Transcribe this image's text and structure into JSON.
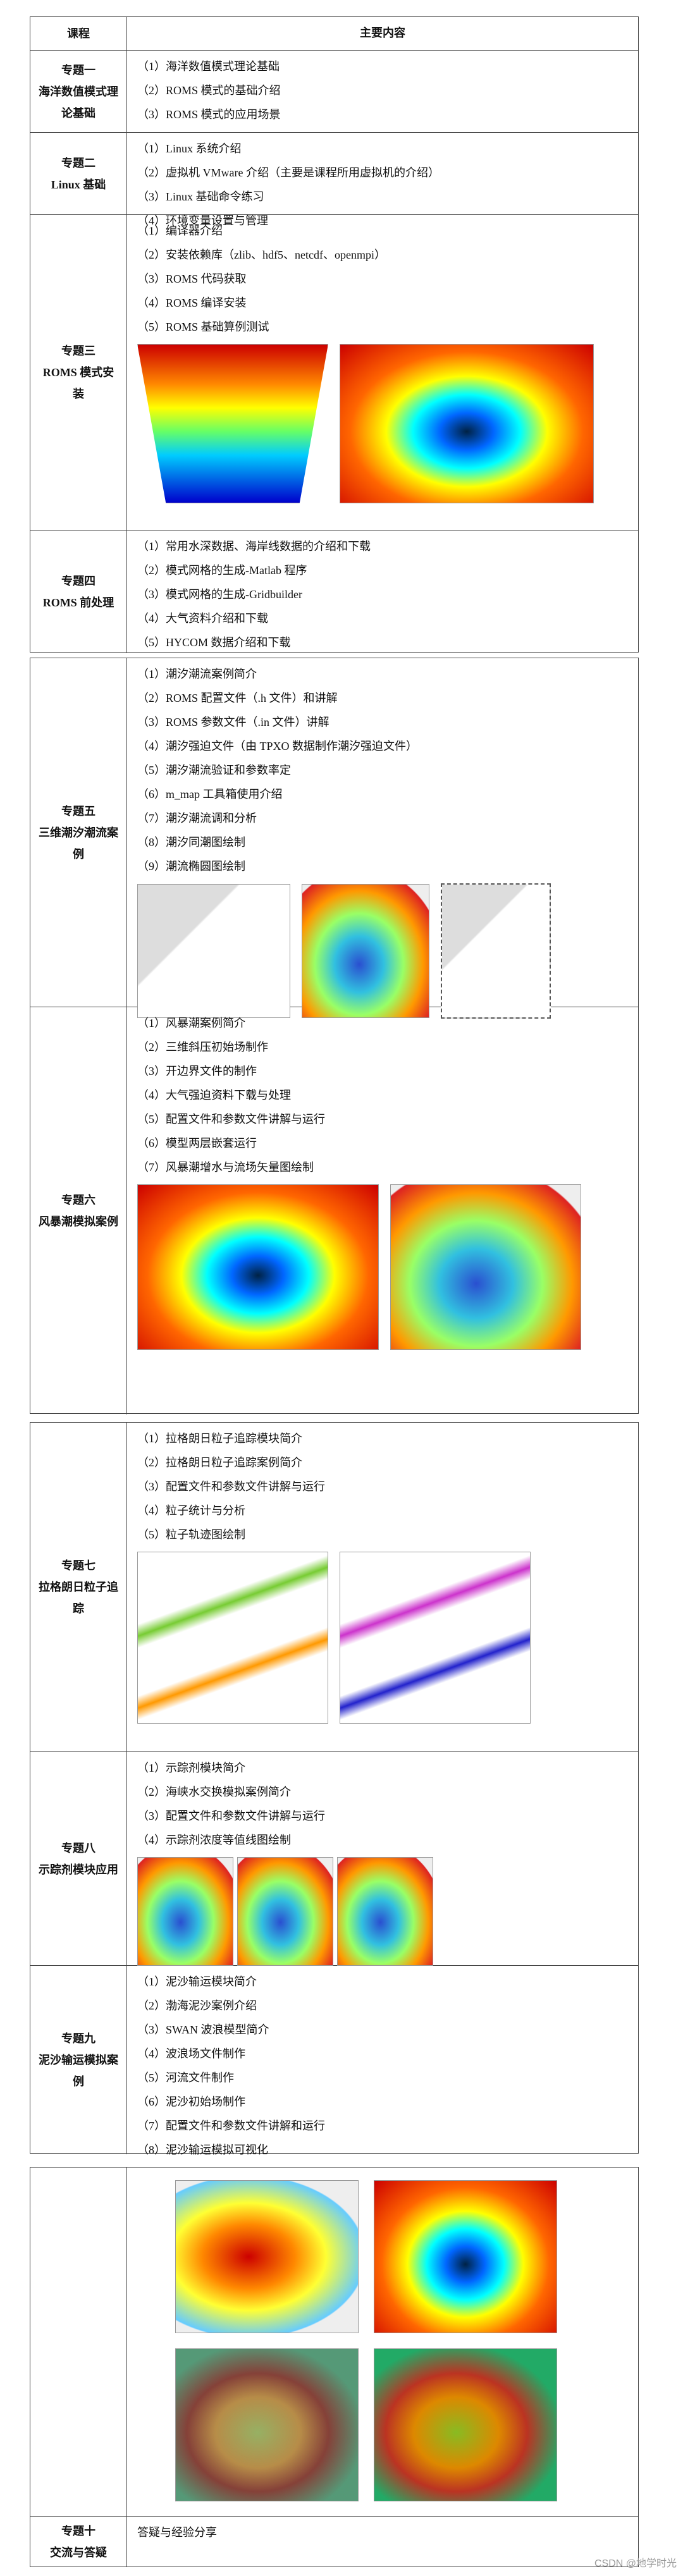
{
  "header": {
    "course": "课程",
    "content": "主要内容"
  },
  "rows": [
    {
      "number": "专题一",
      "name": "海洋数值模式理论基础",
      "items": [
        "（1）海洋数值模式理论基础",
        "（2）ROMS 模式的基础介绍",
        "（3）ROMS 模式的应用场景"
      ]
    },
    {
      "number": "专题二",
      "name": "Linux 基础",
      "items": [
        "（1）Linux 系统介绍",
        "（2）虚拟机 VMware 介绍（主要是课程所用虚拟机的介绍）",
        "（3）Linux 基础命令练习",
        "（4）环境变量设置与管理"
      ]
    },
    {
      "number": "专题三",
      "name": "ROMS 模式安装",
      "items": [
        "（1）编译器介绍",
        "（2）安装依赖库（zlib、hdf5、netcdf、openmpi）",
        "（3）ROMS 代码获取",
        "（4）ROMS 编译安装",
        "（5）ROMS 基础算例测试"
      ]
    },
    {
      "number": "专题四",
      "name": "ROMS 前处理",
      "items": [
        "（1）常用水深数据、海岸线数据的介绍和下载",
        "（2）模式网格的生成-Matlab 程序",
        "（3）模式网格的生成-Gridbuilder",
        "（4）大气资料介绍和下载",
        "（5）HYCOM 数据介绍和下载"
      ]
    },
    {
      "number": "专题五",
      "name": "三维潮汐潮流案例",
      "items": [
        "（1）潮汐潮流案例简介",
        "（2）ROMS 配置文件（.h 文件）和讲解",
        "（3）ROMS 参数文件（.in 文件）讲解",
        "（4）潮汐强迫文件（由 TPXO 数据制作潮汐强迫文件）",
        "（5）潮汐潮流验证和参数率定",
        "（6）m_map 工具箱使用介绍",
        "（7）潮汐潮流调和分析",
        "（8）潮汐同潮图绘制",
        "（9）潮流椭圆图绘制"
      ]
    },
    {
      "number": "专题六",
      "name": "风暴潮模拟案例",
      "items": [
        "（1）风暴潮案例简介",
        "（2）三维斜压初始场制作",
        "（3）开边界文件的制作",
        "（4）大气强迫资料下载与处理",
        "（5）配置文件和参数文件讲解与运行",
        "（6）模型两层嵌套运行",
        "（7）风暴潮增水与流场矢量图绘制"
      ]
    },
    {
      "number": "专题七",
      "name": "拉格朗日粒子追踪",
      "items": [
        "（1）拉格朗日粒子追踪模块简介",
        "（2）拉格朗日粒子追踪案例简介",
        "（3）配置文件和参数文件讲解与运行",
        "（4）粒子统计与分析",
        "（5）粒子轨迹图绘制"
      ]
    },
    {
      "number": "专题八",
      "name": "示踪剂模块应用",
      "items": [
        "（1）示踪剂模块简介",
        "（2）海峡水交换模拟案例简介",
        "（3）配置文件和参数文件讲解与运行",
        "（4）示踪剂浓度等值线图绘制"
      ]
    },
    {
      "number": "专题九",
      "name": "泥沙输运模拟案例",
      "items": [
        "（1）泥沙输运模块简介",
        "（2）渤海泥沙案例介绍",
        "（3）SWAN 波浪模型简介",
        "（4）波浪场文件制作",
        "（5）河流文件制作",
        "（6）泥沙初始场制作",
        "（7）配置文件和参数文件讲解和运行",
        "（8）泥沙输运模拟可视化"
      ]
    },
    {
      "number": "专题十",
      "name": "交流与答疑",
      "items": [
        "答疑与经验分享"
      ]
    }
  ],
  "watermark": "CSDN @地学时光"
}
